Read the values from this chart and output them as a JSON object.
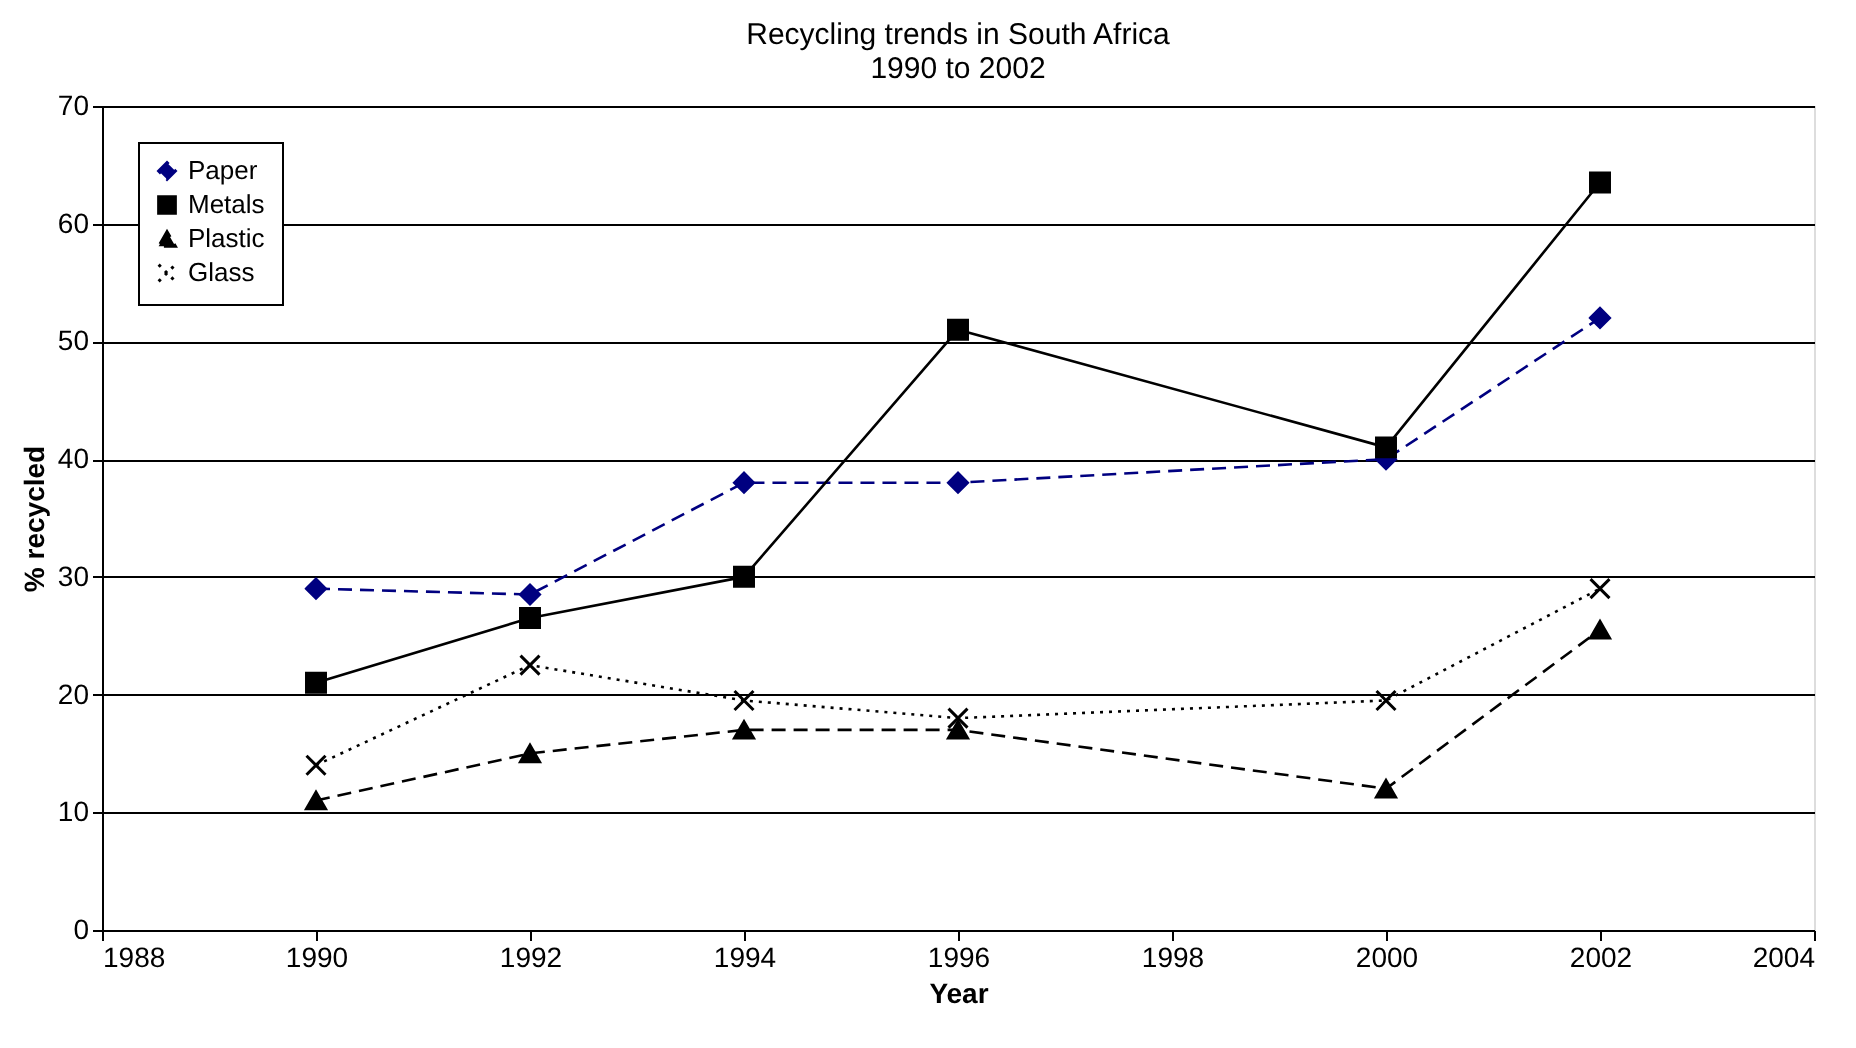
{
  "chart_data": {
    "type": "line",
    "title": "Recycling trends in South Africa",
    "subtitle": "1990 to 2002",
    "xlabel": "Year",
    "ylabel": "% recycled",
    "x": [
      1990,
      1992,
      1994,
      1996,
      2000,
      2002
    ],
    "series": [
      {
        "name": "Paper",
        "color": "#000080",
        "values": [
          29,
          28.5,
          38,
          38,
          40,
          52
        ],
        "marker": "diamond",
        "line_style": "dashed"
      },
      {
        "name": "Metals",
        "color": "#000000",
        "values": [
          21,
          26.5,
          30,
          51,
          41,
          63.5
        ],
        "marker": "square",
        "line_style": "solid"
      },
      {
        "name": "Plastic",
        "color": "#000000",
        "values": [
          11,
          15,
          17,
          17,
          12,
          25.5
        ],
        "marker": "triangle",
        "line_style": "dashed"
      },
      {
        "name": "Glass",
        "color": "#000000",
        "values": [
          14,
          22.5,
          19.5,
          18,
          19.5,
          29
        ],
        "marker": "cross",
        "line_style": "dotted"
      }
    ],
    "xlim": [
      1988,
      2004
    ],
    "xticks": [
      1988,
      1990,
      1992,
      1994,
      1996,
      1998,
      2000,
      2002,
      2004
    ],
    "ylim": [
      0,
      70
    ],
    "yticks": [
      0,
      10,
      20,
      30,
      40,
      50,
      60,
      70
    ],
    "grid": "y",
    "legend": "top left"
  }
}
